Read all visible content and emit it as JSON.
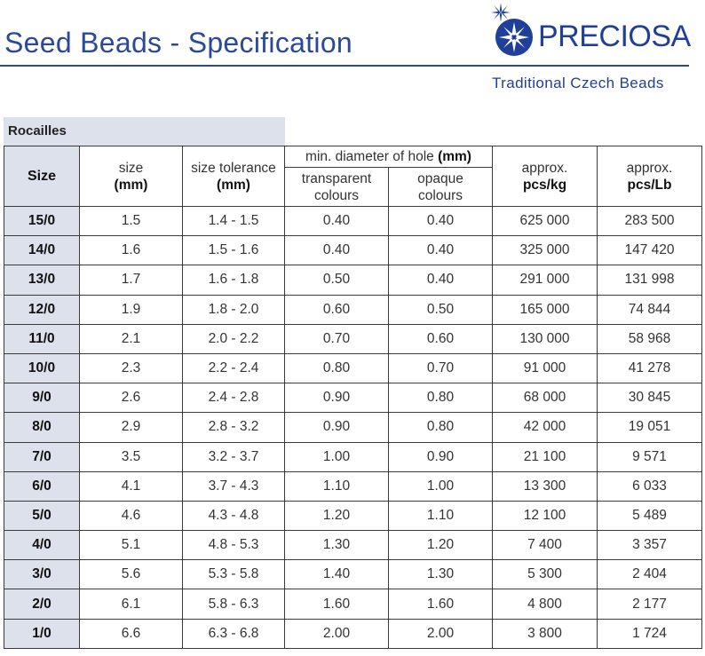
{
  "header": {
    "title": "Seed Beads - Specification",
    "logo_text": "PRECIOSA",
    "tagline": "Traditional Czech Beads",
    "brand_color": "#1f3f99"
  },
  "section_title": "Rocailles",
  "columns": {
    "size": "Size",
    "size_mm_line1": "size",
    "size_mm_line2": "(mm)",
    "tolerance_line1": "size tolerance",
    "tolerance_line2": "(mm)",
    "hole_group_text": "min. diameter of hole ",
    "hole_group_unit": "(mm)",
    "transparent_line1": "transparent",
    "transparent_line2": "colours",
    "opaque_line1": "opaque",
    "opaque_line2": "colours",
    "pcs_kg_line1": "approx.",
    "pcs_kg_line2": "pcs/kg",
    "pcs_lb_line1": "approx.",
    "pcs_lb_line2": "pcs/Lb"
  },
  "rows": [
    {
      "size": "15/0",
      "mm": "1.5",
      "tol": "1.4 - 1.5",
      "trans": "0.40",
      "opaque": "0.40",
      "kg": "625 000",
      "lb": "283 500"
    },
    {
      "size": "14/0",
      "mm": "1.6",
      "tol": "1.5 - 1.6",
      "trans": "0.40",
      "opaque": "0.40",
      "kg": "325 000",
      "lb": "147 420"
    },
    {
      "size": "13/0",
      "mm": "1.7",
      "tol": "1.6 - 1.8",
      "trans": "0.50",
      "opaque": "0.40",
      "kg": "291 000",
      "lb": "131 998"
    },
    {
      "size": "12/0",
      "mm": "1.9",
      "tol": "1.8 - 2.0",
      "trans": "0.60",
      "opaque": "0.50",
      "kg": "165 000",
      "lb": "74 844"
    },
    {
      "size": "11/0",
      "mm": "2.1",
      "tol": "2.0 - 2.2",
      "trans": "0.70",
      "opaque": "0.60",
      "kg": "130 000",
      "lb": "58 968"
    },
    {
      "size": "10/0",
      "mm": "2.3",
      "tol": "2.2 - 2.4",
      "trans": "0.80",
      "opaque": "0.70",
      "kg": "91 000",
      "lb": "41 278"
    },
    {
      "size": "9/0",
      "mm": "2.6",
      "tol": "2.4 - 2.8",
      "trans": "0.90",
      "opaque": "0.80",
      "kg": "68 000",
      "lb": "30 845"
    },
    {
      "size": "8/0",
      "mm": "2.9",
      "tol": "2.8 - 3.2",
      "trans": "0.90",
      "opaque": "0.80",
      "kg": "42 000",
      "lb": "19 051"
    },
    {
      "size": "7/0",
      "mm": "3.5",
      "tol": "3.2 - 3.7",
      "trans": "1.00",
      "opaque": "0.90",
      "kg": "21 100",
      "lb": "9 571"
    },
    {
      "size": "6/0",
      "mm": "4.1",
      "tol": "3.7 - 4.3",
      "trans": "1.10",
      "opaque": "1.00",
      "kg": "13 300",
      "lb": "6 033"
    },
    {
      "size": "5/0",
      "mm": "4.6",
      "tol": "4.3 - 4.8",
      "trans": "1.20",
      "opaque": "1.10",
      "kg": "12 100",
      "lb": "5 489"
    },
    {
      "size": "4/0",
      "mm": "5.1",
      "tol": "4.8 - 5.3",
      "trans": "1.30",
      "opaque": "1.20",
      "kg": "7 400",
      "lb": "3 357"
    },
    {
      "size": "3/0",
      "mm": "5.6",
      "tol": "5.3 - 5.8",
      "trans": "1.40",
      "opaque": "1.30",
      "kg": "5 300",
      "lb": "2 404"
    },
    {
      "size": "2/0",
      "mm": "6.1",
      "tol": "5.8 - 6.3",
      "trans": "1.60",
      "opaque": "1.60",
      "kg": "4 800",
      "lb": "2 177"
    },
    {
      "size": "1/0",
      "mm": "6.6",
      "tol": "6.3 - 6.8",
      "trans": "2.00",
      "opaque": "2.00",
      "kg": "3 800",
      "lb": "1 724"
    }
  ]
}
